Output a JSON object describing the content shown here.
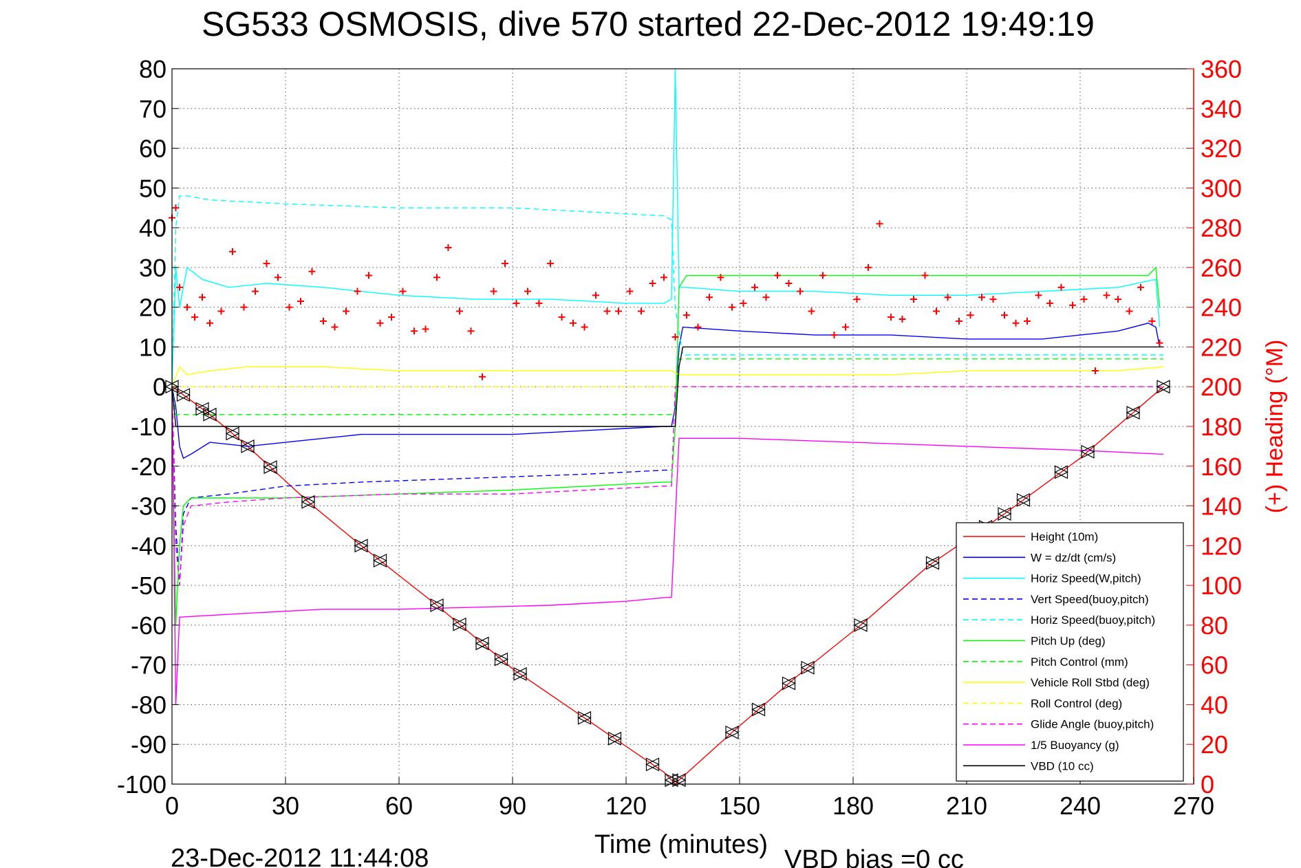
{
  "chart_data": {
    "type": "line",
    "title": "SG533 OSMOSIS, dive 570 started 22-Dec-2012 19:49:19",
    "xlabel": "Time (minutes)",
    "ylabel_right": "(+) Heading (°M)",
    "footer_left": "23-Dec-2012 11:44:08",
    "footer_right": "VBD bias =0 cc",
    "xlim": [
      0,
      270
    ],
    "ylim": [
      -100,
      80
    ],
    "ylim_right": [
      0,
      360
    ],
    "x_ticks": [
      "0",
      "30",
      "60",
      "90",
      "120",
      "150",
      "180",
      "210",
      "240",
      "270"
    ],
    "y_ticks": [
      "80",
      "70",
      "60",
      "50",
      "40",
      "30",
      "20",
      "10",
      "0",
      "-10",
      "-20",
      "-30",
      "-40",
      "-50",
      "-60",
      "-70",
      "-80",
      "-90",
      "-100"
    ],
    "y_right_ticks": [
      "360",
      "340",
      "320",
      "300",
      "280",
      "260",
      "240",
      "220",
      "200",
      "180",
      "160",
      "140",
      "120",
      "100",
      "80",
      "60",
      "40",
      "20",
      "0"
    ],
    "grid": true,
    "legend_position": "bottom-right",
    "colors": {
      "height": "#ff0000",
      "w": "#0000ff",
      "horiz_speed": "#00ffff",
      "vert_speed_buoy": "#0000ff",
      "horiz_speed_buoy": "#00ffff",
      "pitch_up": "#00ff00",
      "pitch_control": "#00ff00",
      "roll": "#ffff00",
      "roll_control": "#ffff00",
      "glide_angle": "#ff00ff",
      "buoyancy": "#ff00ff",
      "vbd": "#000000",
      "heading": "#ff0000",
      "right_axis": "#ff0000"
    },
    "series": [
      {
        "name": "Height (10m)",
        "key": "height",
        "style": "solid",
        "x": [
          0,
          1.5,
          10,
          20,
          36,
          50,
          70,
          90,
          110,
          130,
          133,
          134,
          148,
          165,
          182,
          200,
          220,
          240,
          262
        ],
        "y": [
          0,
          -1,
          -7,
          -15,
          -29,
          -40,
          -55,
          -71,
          -84,
          -97,
          -100,
          -99,
          -87,
          -73,
          -60,
          -45,
          -32,
          -18,
          0
        ]
      },
      {
        "name": "W = dz/dt (cm/s)",
        "key": "w",
        "style": "solid",
        "x": [
          0,
          1,
          2,
          3,
          5,
          10,
          20,
          30,
          50,
          70,
          90,
          110,
          130,
          132,
          133,
          134,
          135,
          150,
          170,
          190,
          210,
          230,
          250,
          258,
          260,
          261
        ],
        "y": [
          0,
          -5,
          -15,
          -18,
          -17,
          -14,
          -15,
          -14,
          -12,
          -12,
          -12,
          -11,
          -10,
          -10,
          -5,
          10,
          15,
          14,
          13,
          13,
          12,
          12,
          14,
          16,
          15,
          10
        ]
      },
      {
        "name": "Horiz Speed(W,pitch)",
        "key": "horiz_speed",
        "style": "solid",
        "x": [
          0,
          1,
          2,
          4,
          8,
          15,
          25,
          40,
          60,
          80,
          100,
          120,
          130,
          132,
          133,
          134,
          136,
          150,
          170,
          190,
          210,
          230,
          250,
          260,
          261
        ],
        "y": [
          0,
          30,
          20,
          30,
          27,
          25,
          26,
          25,
          23,
          22,
          22,
          21,
          21,
          22,
          80,
          25,
          25,
          24,
          24,
          23,
          23,
          24,
          25,
          27,
          15
        ]
      },
      {
        "name": "Vert Speed(buoy,pitch)",
        "key": "vert_speed_buoy",
        "style": "dashed",
        "x": [
          0,
          1,
          2,
          3,
          5,
          15,
          30,
          50,
          80,
          110,
          130,
          132
        ],
        "y": [
          0,
          -35,
          -50,
          -32,
          -28,
          -27,
          -25,
          -24,
          -23,
          -22,
          -21,
          -21
        ]
      },
      {
        "name": "Horiz Speed(buoy,pitch)",
        "key": "horiz_speed_buoy",
        "style": "dashed",
        "x": [
          0,
          1,
          2,
          4,
          10,
          30,
          60,
          90,
          110,
          130,
          132,
          133,
          135,
          180,
          230,
          262
        ],
        "y": [
          0,
          40,
          48,
          48,
          47,
          46,
          45,
          45,
          44,
          43,
          42,
          20,
          8,
          8,
          8,
          8
        ]
      },
      {
        "name": "Pitch Up (deg)",
        "key": "pitch_up",
        "style": "solid",
        "x": [
          0,
          1,
          2,
          3,
          5,
          15,
          30,
          60,
          90,
          110,
          130,
          132,
          133,
          134,
          136,
          160,
          200,
          240,
          258,
          260,
          261
        ],
        "y": [
          0,
          -60,
          -40,
          -30,
          -28,
          -28,
          -28,
          -27,
          -26,
          -25,
          -24,
          -24,
          -10,
          25,
          28,
          28,
          28,
          28,
          28,
          30,
          20
        ]
      },
      {
        "name": "Pitch Control (mm)",
        "key": "pitch_control",
        "style": "dashed",
        "x": [
          0,
          1,
          2,
          133,
          134,
          262
        ],
        "y": [
          0,
          -7,
          -7,
          -7,
          7,
          7
        ]
      },
      {
        "name": "Vehicle Roll Stbd (deg)",
        "key": "roll",
        "style": "solid",
        "x": [
          0,
          2,
          4,
          10,
          20,
          40,
          60,
          80,
          100,
          120,
          132,
          134,
          150,
          170,
          190,
          210,
          230,
          250,
          262
        ],
        "y": [
          0,
          5,
          3,
          4,
          5,
          5,
          4,
          4,
          4,
          4,
          4,
          3,
          3,
          3,
          3,
          4,
          4,
          4,
          5
        ]
      },
      {
        "name": "Roll Control (deg)",
        "key": "roll_control",
        "style": "dashed",
        "x": [
          0,
          262
        ],
        "y": [
          0,
          0
        ]
      },
      {
        "name": "Glide Angle (buoy,pitch)",
        "key": "glide_angle",
        "style": "dashed",
        "x": [
          0,
          1,
          2,
          3,
          5,
          15,
          30,
          60,
          90,
          110,
          130,
          132,
          133,
          134,
          262
        ],
        "y": [
          0,
          -40,
          -50,
          -35,
          -30,
          -29,
          -28,
          -27,
          -27,
          -26,
          -25,
          -25,
          0,
          0,
          0
        ]
      },
      {
        "name": "1/5 Buoyancy (g)",
        "key": "buoyancy",
        "style": "solid",
        "x": [
          0,
          1,
          2,
          20,
          40,
          60,
          80,
          100,
          120,
          131,
          132,
          134,
          150,
          180,
          210,
          240,
          262
        ],
        "y": [
          0,
          -80,
          -58,
          -57,
          -56,
          -56,
          -55.5,
          -55,
          -54,
          -53,
          -53,
          -13,
          -13,
          -14,
          -15,
          -16,
          -17
        ]
      },
      {
        "name": "VBD (10 cc)",
        "key": "vbd",
        "style": "solid",
        "x": [
          0,
          1,
          2,
          133,
          134,
          135,
          262
        ],
        "y": [
          0,
          -10,
          -10,
          -10,
          5,
          10,
          10
        ]
      },
      {
        "name": "(+) Heading",
        "key": "heading",
        "axis": "right",
        "style": "markers",
        "x": [
          0,
          1,
          2,
          4,
          6,
          8,
          10,
          13,
          16,
          19,
          22,
          25,
          28,
          31,
          34,
          37,
          40,
          43,
          46,
          49,
          52,
          55,
          58,
          61,
          64,
          67,
          70,
          73,
          76,
          79,
          82,
          85,
          88,
          91,
          94,
          97,
          100,
          103,
          106,
          109,
          112,
          115,
          118,
          121,
          124,
          127,
          130,
          133,
          136,
          139,
          142,
          145,
          148,
          151,
          154,
          157,
          160,
          163,
          166,
          169,
          172,
          175,
          178,
          181,
          184,
          187,
          190,
          193,
          196,
          199,
          202,
          205,
          208,
          211,
          214,
          217,
          220,
          223,
          226,
          229,
          232,
          235,
          238,
          241,
          244,
          247,
          250,
          253,
          256,
          259,
          261
        ],
        "y": [
          285,
          290,
          250,
          240,
          235,
          245,
          232,
          238,
          268,
          240,
          248,
          262,
          255,
          240,
          243,
          258,
          233,
          230,
          238,
          248,
          256,
          232,
          235,
          248,
          228,
          229,
          255,
          270,
          238,
          228,
          205,
          248,
          262,
          242,
          248,
          242,
          262,
          235,
          232,
          230,
          246,
          238,
          238,
          248,
          238,
          252,
          255,
          225,
          236,
          230,
          245,
          255,
          240,
          242,
          250,
          245,
          256,
          252,
          248,
          238,
          256,
          226,
          230,
          244,
          260,
          282,
          235,
          234,
          244,
          256,
          238,
          245,
          233,
          236,
          245,
          244,
          236,
          232,
          233,
          246,
          242,
          250,
          241,
          244,
          208,
          246,
          244,
          238,
          250,
          233,
          222
        ]
      }
    ]
  }
}
